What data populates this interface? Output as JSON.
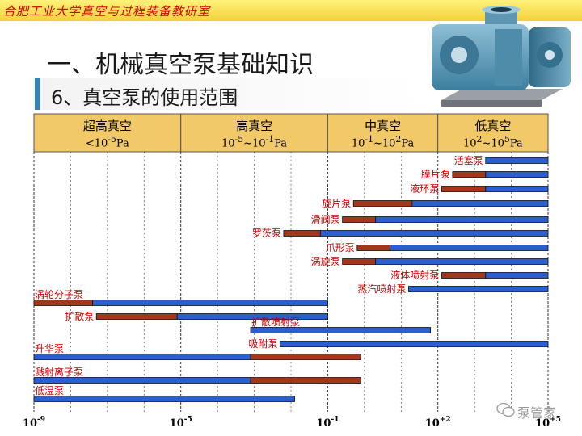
{
  "header": {
    "institution": "合肥工业大学真空与过程装备教研室",
    "title": "一、机械真空泵基础知识",
    "subtitle": "6、真空泵的使用范围"
  },
  "ranges": [
    {
      "name": "超高真空",
      "range_html": "&lt;10<sup>-5</sup>Pa"
    },
    {
      "name": "高真空",
      "range_html": "10<sup>-5</sup>~10<sup>-1</sup>Pa"
    },
    {
      "name": "中真空",
      "range_html": "10<sup>-1</sup>~10<sup>2</sup>Pa"
    },
    {
      "name": "低真空",
      "range_html": "10<sup>2</sup>~10<sup>5</sup>Pa"
    }
  ],
  "axis_ticks": [
    {
      "base": "10",
      "exp": "-9",
      "value": -9
    },
    {
      "base": "10",
      "exp": "-5",
      "value": -5
    },
    {
      "base": "10",
      "exp": "-1",
      "value": -1
    },
    {
      "base": "10",
      "exp": "+2",
      "value": 2
    },
    {
      "base": "10",
      "exp": "+5",
      "value": 5
    }
  ],
  "pumps": [
    {
      "name": "活塞泵",
      "side": "left",
      "segments": [
        {
          "from": 3.3,
          "to": 5,
          "color": "blue"
        }
      ]
    },
    {
      "name": "膜片泵",
      "side": "left",
      "segments": [
        {
          "from": 2.4,
          "to": 3.3,
          "color": "brown"
        },
        {
          "from": 3.3,
          "to": 5,
          "color": "blue"
        }
      ]
    },
    {
      "name": "液环泵",
      "side": "left",
      "segments": [
        {
          "from": 2.1,
          "to": 3.3,
          "color": "brown"
        },
        {
          "from": 3.3,
          "to": 5,
          "color": "blue"
        }
      ]
    },
    {
      "name": "旋片泵",
      "side": "left",
      "segments": [
        {
          "from": -0.3,
          "to": 1.3,
          "color": "brown"
        },
        {
          "from": 1.3,
          "to": 5,
          "color": "blue"
        }
      ]
    },
    {
      "name": "滑阀泵",
      "side": "left",
      "segments": [
        {
          "from": -0.6,
          "to": 0.3,
          "color": "brown"
        },
        {
          "from": 0.3,
          "to": 5,
          "color": "blue"
        }
      ]
    },
    {
      "name": "罗茨泵",
      "side": "left",
      "segments": [
        {
          "from": -2.2,
          "to": -1.2,
          "color": "brown"
        },
        {
          "from": -1.2,
          "to": 5,
          "color": "blue"
        }
      ]
    },
    {
      "name": "爪形泵",
      "side": "left",
      "segments": [
        {
          "from": -0.2,
          "to": 0.7,
          "color": "brown"
        },
        {
          "from": 0.7,
          "to": 5,
          "color": "blue"
        }
      ]
    },
    {
      "name": "涡旋泵",
      "side": "left",
      "segments": [
        {
          "from": -0.6,
          "to": 0.3,
          "color": "brown"
        },
        {
          "from": 0.3,
          "to": 5,
          "color": "blue"
        }
      ]
    },
    {
      "name": "液体喷射泵",
      "side": "left",
      "segments": [
        {
          "from": 2.1,
          "to": 3.3,
          "color": "brown"
        },
        {
          "from": 3.3,
          "to": 5,
          "color": "blue"
        }
      ]
    },
    {
      "name": "涡轮分子泵",
      "side": "above-left",
      "segments": [
        {
          "from": -9,
          "to": -7.4,
          "color": "brown"
        },
        {
          "from": -7.4,
          "to": -1,
          "color": "blue"
        }
      ]
    },
    {
      "name": "蒸汽喷射泵",
      "side": "left",
      "segments": [
        {
          "from": 1.2,
          "to": 5,
          "color": "blue"
        }
      ]
    },
    {
      "name": "扩散泵",
      "side": "left",
      "segments": [
        {
          "from": -7.3,
          "to": -5.1,
          "color": "brown"
        },
        {
          "from": -5.1,
          "to": -1,
          "color": "blue"
        }
      ]
    },
    {
      "name": "扩散喷射泵",
      "side": "above-left",
      "segments": [
        {
          "from": -3.1,
          "to": 1.8,
          "color": "blue"
        }
      ]
    },
    {
      "name": "吸附泵",
      "side": "left",
      "segments": [
        {
          "from": -2.3,
          "to": 5,
          "color": "blue"
        }
      ]
    },
    {
      "name": "升华泵",
      "side": "above-left",
      "segments": [
        {
          "from": -9,
          "to": -3.1,
          "color": "blue"
        },
        {
          "from": -3.1,
          "to": -0.1,
          "color": "brown"
        }
      ]
    },
    {
      "name": "溅射离子泵",
      "side": "above-left",
      "segments": [
        {
          "from": -9,
          "to": -3.1,
          "color": "blue"
        },
        {
          "from": -3.1,
          "to": -0.1,
          "color": "brown"
        }
      ]
    },
    {
      "name": "低温泵",
      "side": "above-left",
      "segments": [
        {
          "from": -9,
          "to": -1.9,
          "color": "blue"
        }
      ]
    }
  ],
  "colors": {
    "bar_blue": "#2b5fd0",
    "bar_brown": "#a2371c",
    "header_fill": "#f1c969",
    "label_red": "#cc0000"
  },
  "watermark": "泵管家"
}
